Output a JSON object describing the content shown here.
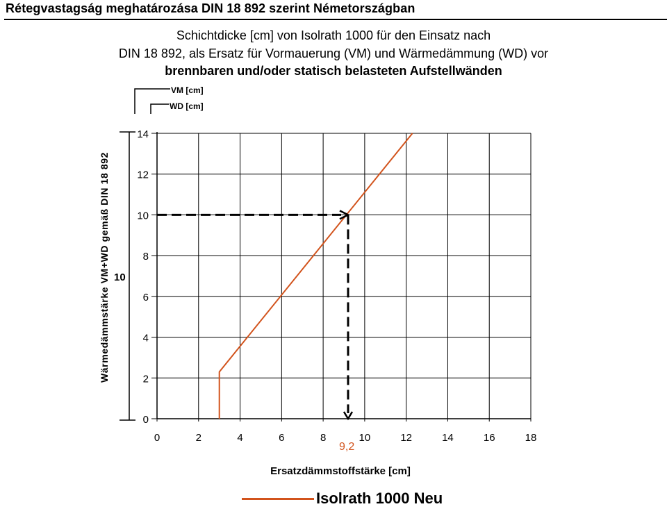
{
  "page": {
    "title": "Rétegvastagság meghatározása DIN 18 892 szerint Németországban",
    "subtitle_1": "Schichtdicke [cm] von Isolrath 1000 für den Einsatz nach",
    "subtitle_2": "DIN 18 892, als Ersatz für Vormauerung (VM) und Wärmedämmung (WD) vor",
    "subtitle_3": "brennbaren und/oder statisch belasteten Aufstellwänden"
  },
  "chart_data": {
    "type": "line",
    "xlabel": "Ersatzdämmstoffstärke [cm]",
    "ylabel": "Wärmedämmstärke VM+WD gemäß DIN 18 892",
    "xlim": [
      0,
      18
    ],
    "ylim": [
      0,
      14
    ],
    "x_ticks": [
      "0",
      "2",
      "4",
      "6",
      "8",
      "10",
      "12",
      "14",
      "16",
      "18"
    ],
    "y_ticks": [
      "0",
      "2",
      "4",
      "6",
      "8",
      "10",
      "12",
      "14"
    ],
    "grid": true,
    "legend_position": "bottom",
    "axis_legend": {
      "vm_label": "VM [cm]",
      "wd_label": "WD [cm]",
      "left_value": "10"
    },
    "series": [
      {
        "name": "Isolrath 1000 Neu",
        "color": "#d2531c",
        "points": [
          [
            3.0,
            0.0
          ],
          [
            3.0,
            2.3
          ],
          [
            12.3,
            14.0
          ]
        ]
      }
    ],
    "annotation": {
      "y_value": 10,
      "x_value": 9.2,
      "x_label": "9,2",
      "label_color": "#d2531c"
    }
  }
}
